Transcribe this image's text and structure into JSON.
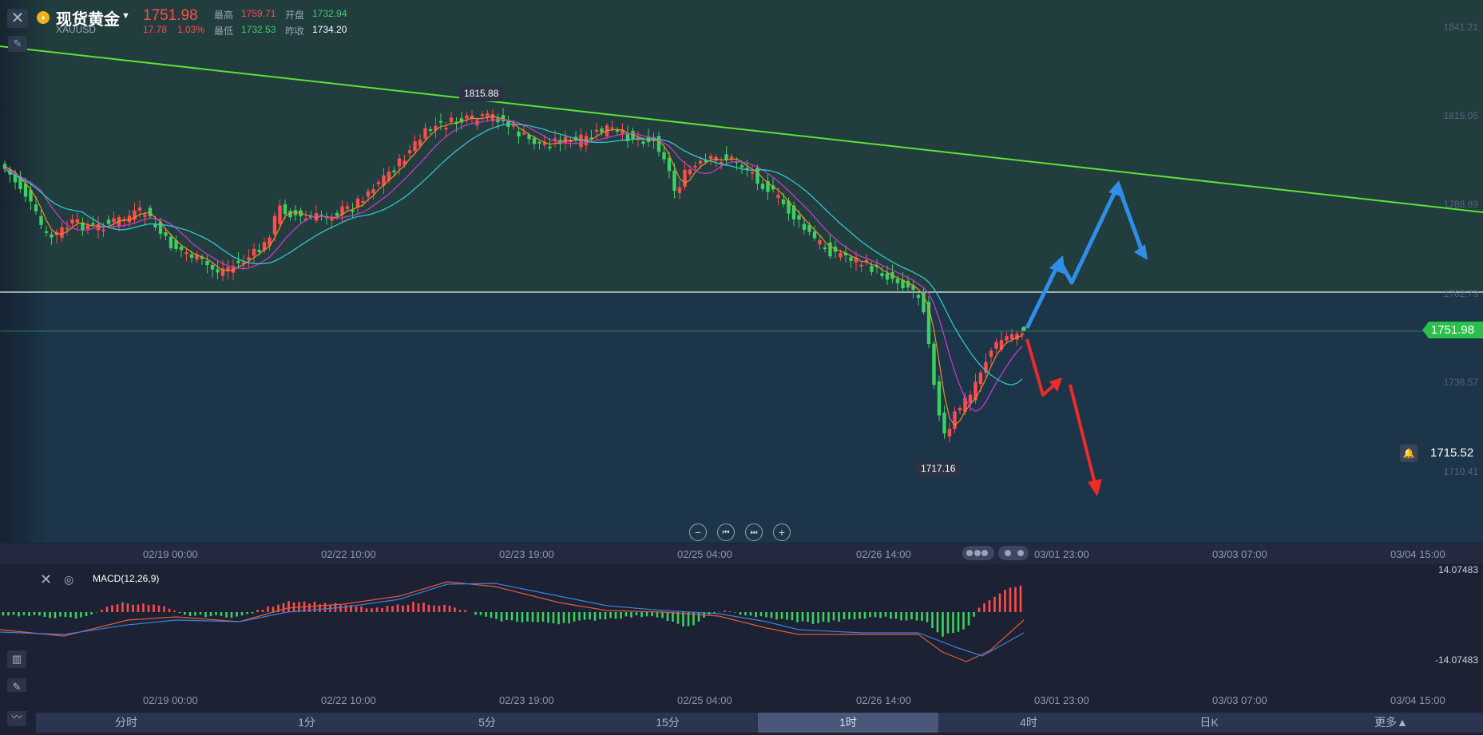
{
  "header": {
    "name": "现货黄金",
    "code": "XAUUSD",
    "price": "1751.98",
    "change": "17.78",
    "change_pct": "1.03%",
    "stats": {
      "high_label": "最高",
      "high": "1759.71",
      "open_label": "开盘",
      "open": "1732.94",
      "low_label": "最低",
      "low": "1732.53",
      "prev_close_label": "昨收",
      "prev_close": "1734.20"
    }
  },
  "price_axis": [
    "1841.21",
    "1815.05",
    "1788.89",
    "1762.73",
    "1736.57",
    "1710.41"
  ],
  "current_price_tag": "1751.98",
  "alert_price": "1715.52",
  "callouts": {
    "high": "1815.88",
    "low": "1717.16"
  },
  "time_axis": [
    "02/19 00:00",
    "02/22 10:00",
    "02/23 19:00",
    "02/25 04:00",
    "02/26 14:00",
    "03/01 23:00",
    "03/03 07:00",
    "03/04 15:00"
  ],
  "macd": {
    "label": "MACD(12,26,9)",
    "max": "14.07483",
    "min": "-14.07483"
  },
  "tabs": [
    "分时",
    "1分",
    "5分",
    "15分",
    "1时",
    "4时",
    "日K",
    "更多▲"
  ],
  "active_tab": "1时",
  "colors": {
    "up": "#ff4c4c",
    "down": "#3bd15f",
    "trendline": "#5be336",
    "arrow_up": "#2f8fe8",
    "arrow_down": "#f02a2a"
  },
  "icons": [
    "close-icon",
    "draw-tool-icon",
    "gold-coin-icon",
    "caret-down-icon",
    "bell-icon",
    "zoom-out-icon",
    "prev-icon",
    "next-icon",
    "zoom-in-icon",
    "gear-icon",
    "indicator-icon",
    "pencil-icon",
    "line-chart-icon"
  ]
}
